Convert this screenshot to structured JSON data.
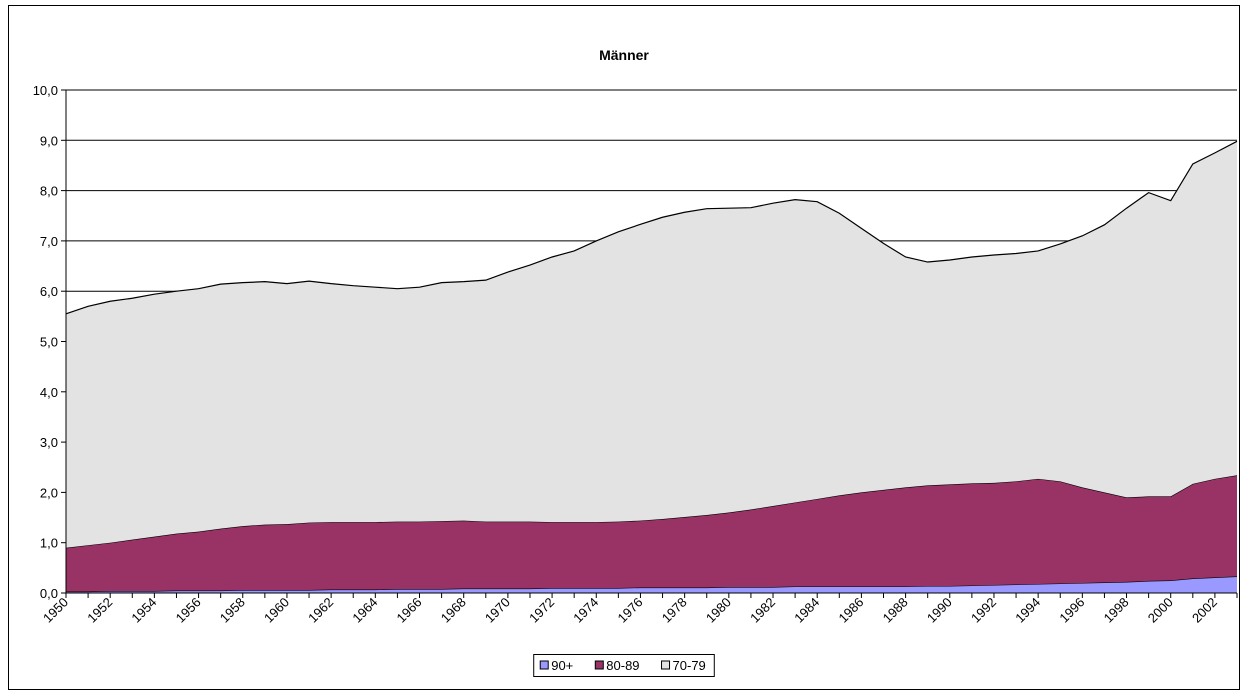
{
  "chart_data": {
    "type": "stacked_area",
    "title": "Männer",
    "categories": [
      "1950",
      null,
      "1952",
      null,
      "1954",
      null,
      "1956",
      null,
      "1958",
      null,
      "1960",
      null,
      "1962",
      null,
      "1964",
      null,
      "1966",
      null,
      "1968",
      null,
      "1970",
      null,
      "1972",
      null,
      "1974",
      null,
      "1976",
      null,
      "1978",
      null,
      "1980",
      null,
      "1982",
      null,
      "1984",
      null,
      "1986",
      null,
      "1988",
      null,
      "1990",
      null,
      "1992",
      null,
      "1994",
      null,
      "1996",
      null,
      "1998",
      null,
      "2000",
      null,
      "2002",
      null
    ],
    "series": [
      {
        "name": "90+",
        "color": "#9999ff",
        "values": [
          0.03,
          0.03,
          0.04,
          0.04,
          0.04,
          0.05,
          0.05,
          0.05,
          0.06,
          0.06,
          0.06,
          0.06,
          0.07,
          0.07,
          0.07,
          0.08,
          0.08,
          0.08,
          0.09,
          0.09,
          0.09,
          0.09,
          0.1,
          0.1,
          0.1,
          0.1,
          0.11,
          0.11,
          0.11,
          0.11,
          0.12,
          0.12,
          0.12,
          0.13,
          0.13,
          0.13,
          0.13,
          0.13,
          0.13,
          0.14,
          0.14,
          0.15,
          0.16,
          0.17,
          0.18,
          0.19,
          0.2,
          0.21,
          0.22,
          0.24,
          0.25,
          0.29,
          0.31,
          0.33
        ]
      },
      {
        "name": "80-89",
        "color": "#993366",
        "values": [
          0.87,
          0.92,
          0.96,
          1.02,
          1.08,
          1.13,
          1.17,
          1.23,
          1.27,
          1.3,
          1.31,
          1.34,
          1.34,
          1.34,
          1.34,
          1.34,
          1.34,
          1.35,
          1.35,
          1.33,
          1.33,
          1.33,
          1.31,
          1.31,
          1.31,
          1.32,
          1.33,
          1.36,
          1.4,
          1.44,
          1.48,
          1.54,
          1.61,
          1.67,
          1.74,
          1.81,
          1.87,
          1.92,
          1.97,
          2.0,
          2.02,
          2.03,
          2.03,
          2.05,
          2.09,
          2.03,
          1.9,
          1.79,
          1.68,
          1.68,
          1.67,
          1.88,
          1.96,
          2.01
        ]
      },
      {
        "name": "70-79",
        "color": "#e3e3e3",
        "values": [
          4.65,
          4.75,
          4.8,
          4.8,
          4.82,
          4.82,
          4.83,
          4.86,
          4.84,
          4.83,
          4.78,
          4.8,
          4.74,
          4.7,
          4.67,
          4.63,
          4.66,
          4.74,
          4.75,
          4.8,
          4.96,
          5.1,
          5.27,
          5.39,
          5.59,
          5.76,
          5.89,
          6.0,
          6.06,
          6.09,
          6.05,
          6.0,
          6.02,
          6.02,
          5.91,
          5.61,
          5.25,
          4.9,
          4.58,
          4.44,
          4.46,
          4.5,
          4.53,
          4.53,
          4.53,
          4.72,
          5.0,
          5.32,
          5.75,
          6.04,
          5.88,
          6.36,
          6.48,
          6.64
        ]
      }
    ],
    "ylim": [
      0,
      10
    ],
    "yticks": [
      {
        "value": 0,
        "label": "0,0"
      },
      {
        "value": 1,
        "label": "1,0"
      },
      {
        "value": 2,
        "label": "2,0"
      },
      {
        "value": 3,
        "label": "3,0"
      },
      {
        "value": 4,
        "label": "4,0"
      },
      {
        "value": 5,
        "label": "5,0"
      },
      {
        "value": 6,
        "label": "6,0"
      },
      {
        "value": 7,
        "label": "7,0"
      },
      {
        "value": 8,
        "label": "8,0"
      },
      {
        "value": 9,
        "label": "9,0"
      },
      {
        "value": 10,
        "label": "10,0"
      }
    ],
    "grid": true,
    "legend": "bottom"
  }
}
